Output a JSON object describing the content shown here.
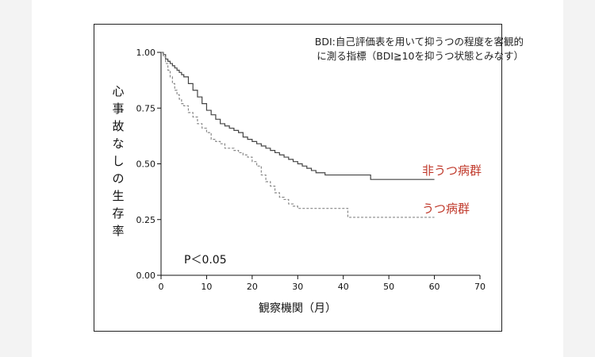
{
  "note_line1": "BDI:自己評価表を用いて抑うつの程度を客観的",
  "note_line2": "に測る指標（BDI≧10を抑うつ状態とみなす）",
  "p_value": "P＜0.05",
  "colors": {
    "non_depressed": "#444444",
    "depressed": "#888888",
    "group_label": "#c0392b"
  },
  "chart_data": {
    "type": "line",
    "title": "",
    "xlabel": "観察機関（月）",
    "ylabel": "心事故なしの生存率",
    "xlim": [
      0,
      70
    ],
    "ylim": [
      0,
      1.0
    ],
    "x_ticks": [
      0,
      10,
      20,
      30,
      40,
      50,
      60,
      70
    ],
    "y_ticks": [
      0.0,
      0.25,
      0.5,
      0.75,
      1.0
    ],
    "y_tick_labels": [
      "0.00",
      "0.25",
      "0.50",
      "0.75",
      "1.00"
    ],
    "series": [
      {
        "name": "非うつ病群",
        "style": "solid",
        "x": [
          0,
          0.5,
          1,
          1.5,
          2,
          2.5,
          3,
          3.5,
          4,
          4.5,
          5,
          6,
          7,
          8,
          9,
          10,
          11,
          12,
          13,
          14,
          15,
          16,
          17,
          18,
          19,
          20,
          21,
          22,
          23,
          24,
          25,
          26,
          27,
          28,
          29,
          30,
          31,
          32,
          33,
          34,
          35,
          36,
          38,
          40,
          42,
          44,
          46,
          48,
          50,
          55,
          60
        ],
        "y": [
          1.0,
          0.99,
          0.97,
          0.96,
          0.95,
          0.94,
          0.93,
          0.92,
          0.91,
          0.9,
          0.89,
          0.86,
          0.83,
          0.8,
          0.77,
          0.74,
          0.72,
          0.7,
          0.68,
          0.67,
          0.66,
          0.65,
          0.64,
          0.62,
          0.61,
          0.6,
          0.59,
          0.58,
          0.57,
          0.56,
          0.55,
          0.54,
          0.53,
          0.52,
          0.51,
          0.5,
          0.49,
          0.48,
          0.47,
          0.46,
          0.46,
          0.45,
          0.45,
          0.45,
          0.45,
          0.45,
          0.43,
          0.43,
          0.43,
          0.43,
          0.43
        ]
      },
      {
        "name": "うつ病群",
        "style": "dashed",
        "x": [
          0,
          0.5,
          1,
          1.5,
          2,
          2.5,
          3,
          3.5,
          4,
          4.5,
          5,
          6,
          7,
          8,
          9,
          10,
          11,
          12,
          13,
          14,
          15,
          16,
          17,
          18,
          19,
          20,
          21,
          22,
          23,
          24,
          25,
          26,
          27,
          28,
          29,
          30,
          35,
          40,
          41,
          45,
          50,
          55,
          60
        ],
        "y": [
          1.0,
          0.98,
          0.95,
          0.92,
          0.89,
          0.86,
          0.83,
          0.81,
          0.79,
          0.77,
          0.76,
          0.73,
          0.71,
          0.68,
          0.66,
          0.64,
          0.61,
          0.6,
          0.59,
          0.57,
          0.57,
          0.56,
          0.55,
          0.54,
          0.53,
          0.51,
          0.49,
          0.45,
          0.42,
          0.4,
          0.37,
          0.35,
          0.34,
          0.32,
          0.31,
          0.3,
          0.3,
          0.3,
          0.26,
          0.26,
          0.26,
          0.26,
          0.26
        ]
      }
    ],
    "legend": "inline-right"
  }
}
